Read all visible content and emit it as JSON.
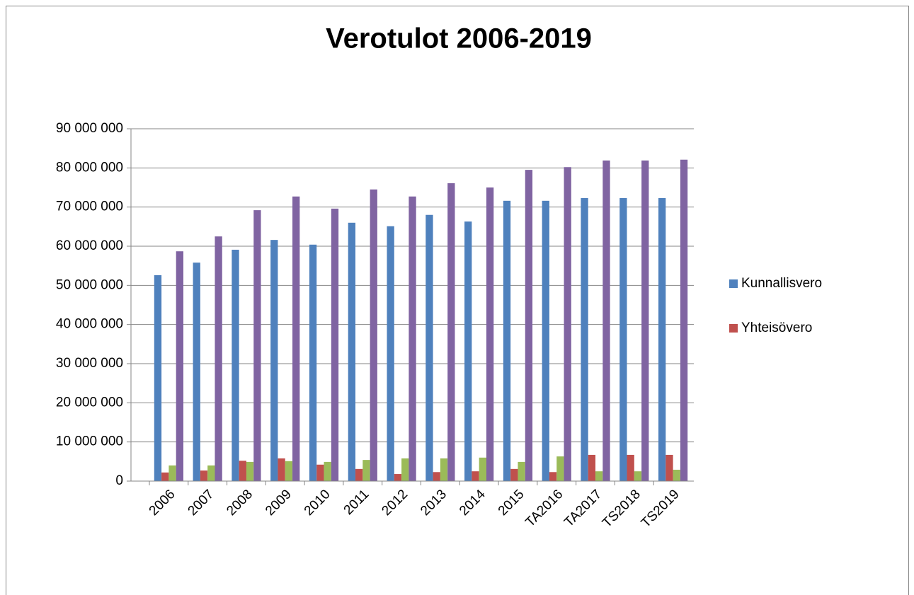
{
  "chart_data": {
    "type": "bar",
    "title": "Verotulot 2006-2019",
    "categories": [
      "2006",
      "2007",
      "2008",
      "2009",
      "2010",
      "2011",
      "2012",
      "2013",
      "2014",
      "2015",
      "TA2016",
      "TA2017",
      "TS2018",
      "TS2019"
    ],
    "series": [
      {
        "name": "Kunnallisvero",
        "color": "#4f81bd",
        "values": [
          52600000,
          55800000,
          59100000,
          61600000,
          60400000,
          66000000,
          65100000,
          68000000,
          66300000,
          71600000,
          71600000,
          72300000,
          72300000,
          72300000
        ]
      },
      {
        "name": "Yhteisövero",
        "color": "#c0504d",
        "values": [
          2200000,
          2700000,
          5200000,
          5800000,
          4200000,
          3100000,
          1800000,
          2300000,
          2500000,
          3100000,
          2300000,
          6700000,
          6700000,
          6700000
        ]
      },
      {
        "color": "#9bbb59",
        "values": [
          4000000,
          4000000,
          4900000,
          5100000,
          4900000,
          5400000,
          5800000,
          5800000,
          6000000,
          4900000,
          6300000,
          2500000,
          2500000,
          2900000
        ]
      },
      {
        "color": "#8064a2",
        "values": [
          58700000,
          62500000,
          69200000,
          72700000,
          69600000,
          74500000,
          72700000,
          76100000,
          75000000,
          79500000,
          80200000,
          81900000,
          81900000,
          82100000
        ]
      }
    ],
    "ylim": [
      0,
      90000000
    ],
    "yticks": [
      0,
      {
        "value": 10000000,
        "label": "10 000 000"
      },
      {
        "value": 20000000,
        "label": "20 000 000"
      },
      {
        "value": 30000000,
        "label": "30 000 000"
      },
      {
        "value": 40000000,
        "label": "40 000 000"
      },
      {
        "value": 50000000,
        "label": "50 000 000"
      },
      {
        "value": 60000000,
        "label": "60 000 000"
      },
      {
        "value": 70000000,
        "label": "70 000 000"
      },
      {
        "value": 80000000,
        "label": "80 000 000"
      },
      {
        "value": 90000000,
        "label": "90 000 000"
      }
    ],
    "grid": true,
    "legend": "right"
  }
}
